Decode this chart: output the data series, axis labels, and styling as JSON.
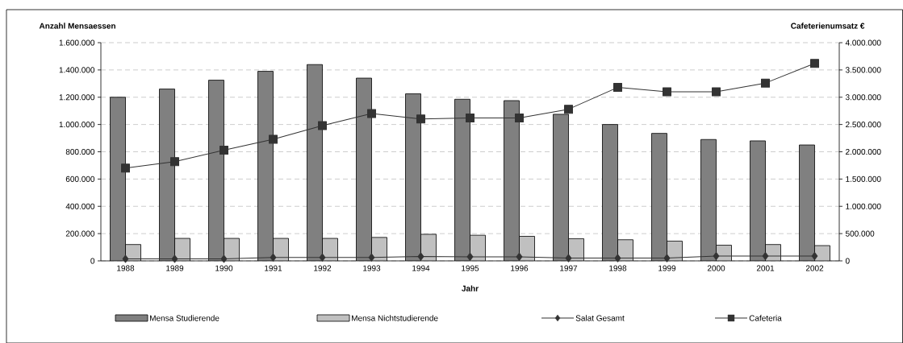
{
  "chart_data": {
    "type": "bar",
    "ylabel": "Anzahl Mensaessen",
    "y2label": "Cafeterienumsatz €",
    "xlabel": "Jahr",
    "categories": [
      "1988",
      "1989",
      "1990",
      "1991",
      "1992",
      "1993",
      "1994",
      "1995",
      "1996",
      "1997",
      "1998",
      "1999",
      "2000",
      "2001",
      "2002"
    ],
    "series": [
      {
        "name": "Mensa Studierende",
        "color": "#808080",
        "values": [
          1200000,
          1260000,
          1325000,
          1390000,
          1440000,
          1340000,
          1225000,
          1185000,
          1175000,
          1075000,
          1000000,
          935000,
          890000,
          880000,
          850000
        ]
      },
      {
        "name": "Mensa Nichtstudierende",
        "color": "#c0c0c0",
        "values": [
          120000,
          165000,
          165000,
          165000,
          165000,
          172000,
          195000,
          188000,
          180000,
          163000,
          155000,
          145000,
          115000,
          120000,
          112000
        ]
      },
      {
        "name": "Salat Gesamt",
        "type": "line",
        "marker": "diamond",
        "color": "#333333",
        "values": [
          15000,
          15000,
          15000,
          25000,
          25000,
          25000,
          32000,
          30000,
          30000,
          20000,
          20000,
          20000,
          35000,
          35000,
          35000
        ]
      },
      {
        "name": "Cafeteria",
        "type": "line",
        "marker": "square",
        "axis": "y2",
        "color": "#333333",
        "values": [
          1700000,
          1820000,
          2030000,
          2230000,
          2480000,
          2700000,
          2600000,
          2620000,
          2620000,
          2780000,
          3180000,
          3100000,
          3100000,
          3260000,
          3620000
        ]
      }
    ],
    "ylim": [
      0,
      1600000
    ],
    "yticks": [
      0,
      {
        "value": 200000,
        "label": "200.000"
      },
      {
        "value": 400000,
        "label": "400.000"
      },
      {
        "value": 600000,
        "label": "600.000"
      },
      {
        "value": 800000,
        "label": "800.000"
      },
      {
        "value": 1000000,
        "label": "1.000.000"
      },
      {
        "value": 1200000,
        "label": "1.200.000"
      },
      {
        "value": 1400000,
        "label": "1.400.000"
      },
      {
        "value": 1600000,
        "label": "1.600.000"
      }
    ],
    "y2lim": [
      0,
      4000000
    ],
    "y2ticks": [
      0,
      {
        "value": 500000,
        "label": "500.000"
      },
      {
        "value": 1000000,
        "label": "1.000.000"
      },
      {
        "value": 1500000,
        "label": "1.500.000"
      },
      {
        "value": 2000000,
        "label": "2.000.000"
      },
      {
        "value": 2500000,
        "label": "2.500.000"
      },
      {
        "value": 3000000,
        "label": "3.000.000"
      },
      {
        "value": 3500000,
        "label": "3.500.000"
      },
      {
        "value": 4000000,
        "label": "4.000.000"
      }
    ],
    "grid": "y",
    "legend": "bottom"
  }
}
